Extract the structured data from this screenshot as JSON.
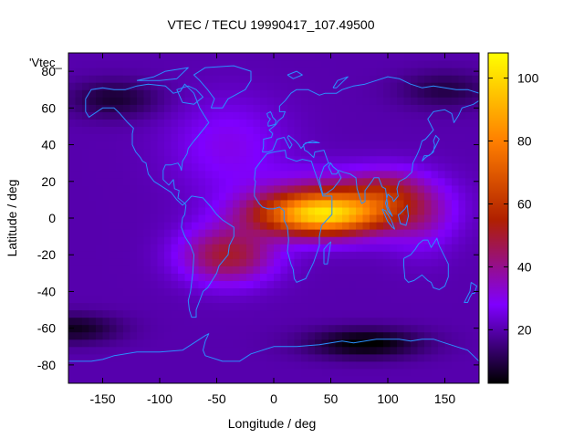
{
  "chart_data": {
    "type": "heatmap",
    "title": "VTEC / TECU 19990417_107.49500",
    "series_key": "'Vtec_",
    "xlabel": "Longitude / deg",
    "ylabel": "Latitude / deg",
    "xlim": [
      -180,
      180
    ],
    "ylim": [
      -90,
      90
    ],
    "x_ticks": [
      -150,
      -100,
      -50,
      0,
      50,
      100,
      150
    ],
    "y_ticks": [
      -80,
      -60,
      -40,
      -20,
      0,
      20,
      40,
      60,
      80
    ],
    "colorbar": {
      "range": [
        3,
        108
      ],
      "ticks": [
        20,
        40,
        60,
        80,
        100
      ],
      "stops": [
        {
          "value": 3,
          "color": "#000000"
        },
        {
          "value": 28,
          "color": "#7f00ff"
        },
        {
          "value": 55,
          "color": "#b02000"
        },
        {
          "value": 80,
          "color": "#ff7f00"
        },
        {
          "value": 108,
          "color": "#ffff00"
        }
      ]
    },
    "field_model": {
      "base_tecu": 20,
      "peaks": [
        {
          "lon": 40,
          "lat": 2,
          "sigma_lon": 55,
          "sigma_lat": 11,
          "tecu": 60
        },
        {
          "lon": 60,
          "lat": 8,
          "sigma_lon": 70,
          "sigma_lat": 16,
          "tecu": 28
        },
        {
          "lon": -40,
          "lat": -20,
          "sigma_lon": 40,
          "sigma_lat": 15,
          "tecu": 30
        },
        {
          "lon": 100,
          "lat": 15,
          "sigma_lon": 30,
          "sigma_lat": 12,
          "tecu": 15
        },
        {
          "lon": 130,
          "lat": 0,
          "sigma_lon": 30,
          "sigma_lat": 20,
          "tecu": 10
        },
        {
          "lon": -40,
          "lat": 40,
          "sigma_lon": 50,
          "sigma_lat": 25,
          "tecu": 10
        }
      ],
      "troughs": [
        {
          "lon": 80,
          "lat": -68,
          "sigma_lon": 50,
          "sigma_lat": 8,
          "tecu": -18
        },
        {
          "lon": -175,
          "lat": -60,
          "sigma_lon": 40,
          "sigma_lat": 8,
          "tecu": -14
        },
        {
          "lon": -140,
          "lat": 65,
          "sigma_lon": 40,
          "sigma_lat": 10,
          "tecu": -12
        },
        {
          "lon": 150,
          "lat": 70,
          "sigma_lon": 40,
          "sigma_lat": 10,
          "tecu": -10
        }
      ]
    }
  },
  "colors": {
    "coastline": "#2a8fff",
    "axis": "#000000",
    "background": "#ffffff"
  }
}
